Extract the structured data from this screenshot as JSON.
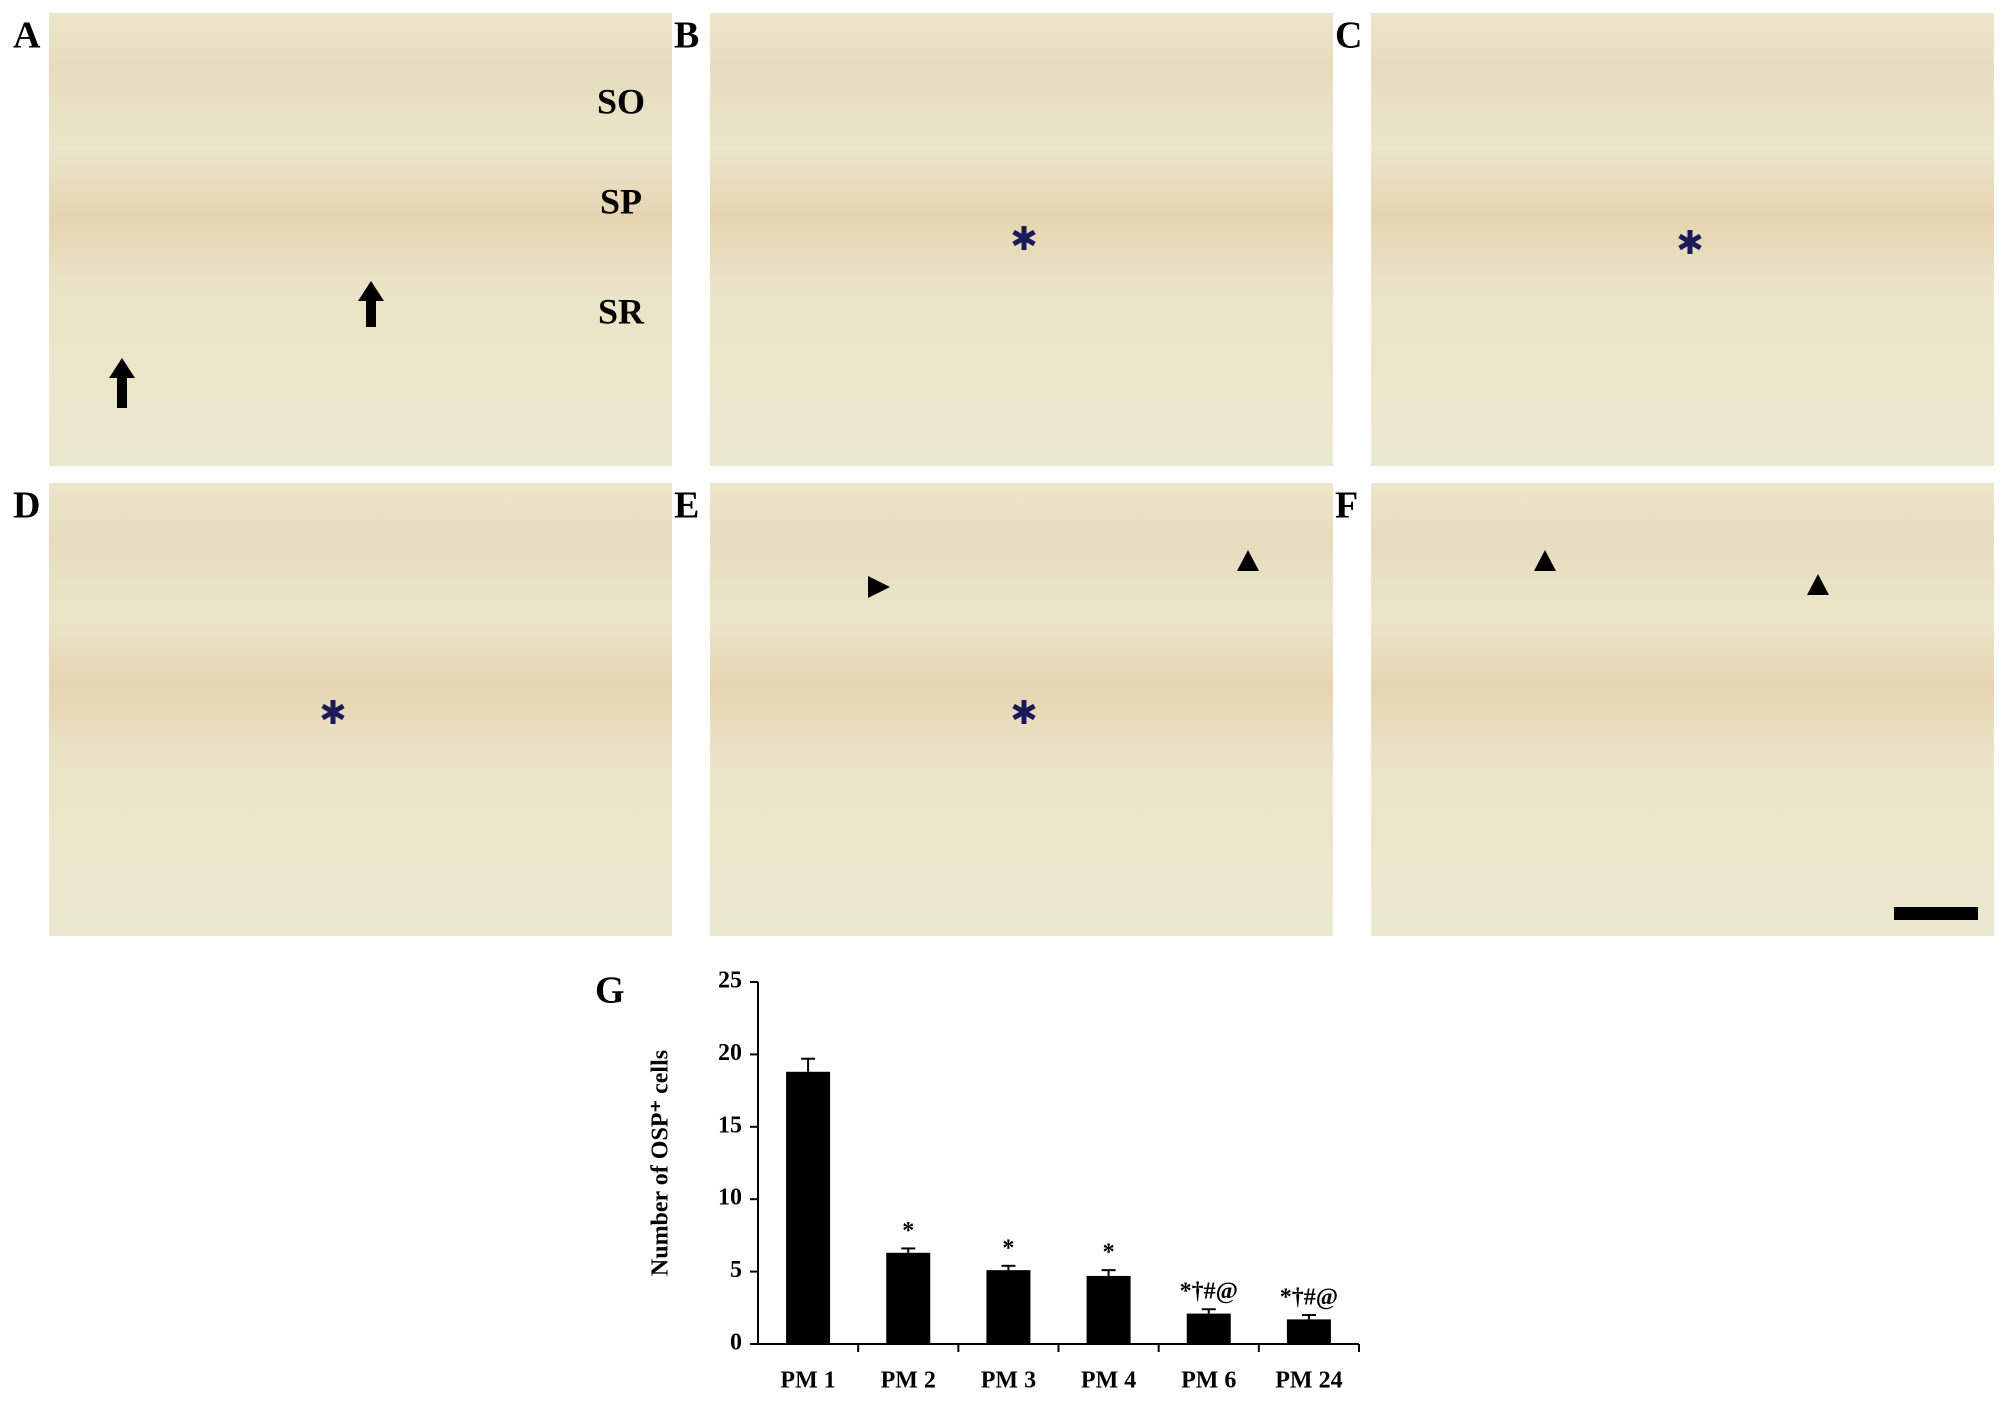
{
  "panels": [
    {
      "label": "A",
      "layers": [
        "SO",
        "SP",
        "SR"
      ]
    },
    {
      "label": "B"
    },
    {
      "label": "C"
    },
    {
      "label": "D"
    },
    {
      "label": "E"
    },
    {
      "label": "F"
    }
  ],
  "chart_data": {
    "type": "bar",
    "label": "G",
    "ylabel": "Number of OSP⁺ cells",
    "categories": [
      "PM 1",
      "PM 2",
      "PM 3",
      "PM 4",
      "PM 6",
      "PM 24"
    ],
    "values": [
      18.8,
      6.3,
      5.1,
      4.7,
      2.1,
      1.7
    ],
    "errors": [
      0.9,
      0.3,
      0.3,
      0.4,
      0.3,
      0.3
    ],
    "annotations": [
      null,
      "*",
      "*",
      "*",
      "*†#@",
      "*†#@"
    ],
    "color": "#000000",
    "ylim": [
      0,
      25
    ],
    "yticks": [
      0,
      5,
      10,
      15,
      20,
      25
    ]
  }
}
